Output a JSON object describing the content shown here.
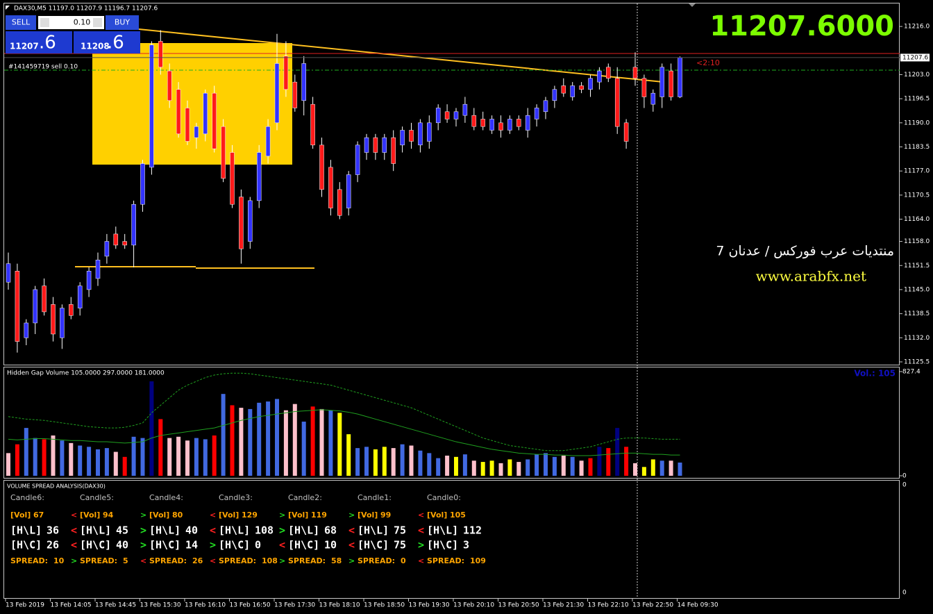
{
  "chart_data": [
    {
      "type": "candlestick",
      "categories": [
        "13 Feb 2019",
        null,
        null,
        null,
        null,
        "13 Feb 14:05",
        null,
        null,
        null,
        null,
        "13 Feb 14:45",
        null,
        null,
        null,
        null,
        "13 Feb 15:30",
        null,
        null,
        null,
        null,
        "13 Feb 16:10",
        null,
        null,
        null,
        null,
        "13 Feb 16:50",
        null,
        null,
        null,
        null,
        "13 Feb 17:30",
        null,
        null,
        null,
        null,
        "13 Feb 18:10",
        null,
        null,
        null,
        null,
        "13 Feb 18:50",
        null,
        null,
        null,
        null,
        "13 Feb 19:30",
        null,
        null,
        null,
        null,
        "13 Feb 20:10",
        null,
        null,
        null,
        null,
        "13 Feb 20:50",
        null,
        null,
        null,
        null,
        "13 Feb 21:30",
        null,
        null,
        null,
        null,
        "13 Feb 22:10",
        null,
        null,
        null,
        null,
        "13 Feb 22:50",
        null,
        null,
        null,
        null,
        "14 Feb 09:30"
      ],
      "open": [
        11147,
        11150,
        11132,
        11136,
        11146,
        11141,
        11132,
        11141,
        11140,
        11145,
        11148,
        11154,
        11160,
        11158,
        11157,
        11168,
        11178,
        11212,
        11204,
        11199,
        11194,
        11186,
        11187,
        11198,
        11189,
        11182,
        11170,
        11158,
        11169,
        11181,
        11190,
        11208,
        11201,
        11196,
        11195,
        11184,
        11178,
        11172,
        11167,
        11176,
        11182,
        11186,
        11182,
        11186,
        11184,
        11188,
        11184,
        11185,
        11190,
        11193,
        11191,
        11192,
        11192,
        11191,
        11188,
        11190,
        11188,
        11191,
        11188,
        11191,
        11193,
        11196,
        11200,
        11197,
        11200,
        11199,
        11201,
        11205,
        11202,
        11190,
        11205,
        11202,
        11195,
        11197,
        11204,
        11197
      ],
      "high": [
        11155,
        11152,
        11137,
        11146,
        11148,
        11143,
        11141,
        11143,
        11147,
        11151,
        11155,
        11160,
        11162,
        11160,
        11169,
        11180,
        11212,
        11215,
        11206,
        11201,
        11196,
        11190,
        11199,
        11200,
        11191,
        11184,
        11172,
        11170,
        11184,
        11191,
        11214,
        11212,
        11203,
        11208,
        11197,
        11186,
        11180,
        11174,
        11177,
        11185,
        11187,
        11187,
        11187,
        11188,
        11189,
        11190,
        11191,
        11192,
        11195,
        11195,
        11194,
        11197,
        11194,
        11193,
        11192,
        11192,
        11192,
        11192,
        11194,
        11195,
        11197,
        11200,
        11202,
        11201,
        11201,
        11203,
        11205,
        11206,
        11205,
        11191,
        11209,
        11203,
        11199,
        11206,
        11206,
        11207.9
      ],
      "low": [
        11145,
        11128,
        11130,
        11133,
        11138,
        11131,
        11129,
        11137,
        11138,
        11143,
        11146,
        11152,
        11156,
        11156,
        11151,
        11166,
        11176,
        11203,
        11194,
        11186,
        11184,
        11183,
        11185,
        11182,
        11174,
        11167,
        11152,
        11156,
        11167,
        11179,
        11188,
        11197,
        11193,
        11192,
        11183,
        11170,
        11165,
        11164,
        11165,
        11174,
        11180,
        11180,
        11180,
        11177,
        11182,
        11183,
        11182,
        11183,
        11188,
        11190,
        11189,
        11190,
        11188,
        11188,
        11187,
        11186,
        11187,
        11188,
        11186,
        11189,
        11191,
        11194,
        11197,
        11196,
        11198,
        11197,
        11199,
        11201,
        11187,
        11183,
        11200,
        11194,
        11193,
        11194,
        11196,
        11196.7
      ],
      "close": [
        11152,
        11131,
        11136,
        11145,
        11139,
        11133,
        11140,
        11138,
        11146,
        11150,
        11153,
        11158,
        11157,
        11157,
        11168,
        11179,
        11211,
        11205,
        11196,
        11187,
        11185,
        11189,
        11198,
        11183,
        11175,
        11168,
        11156,
        11169,
        11182,
        11189,
        11206,
        11199,
        11194,
        11206,
        11184,
        11172,
        11167,
        11165,
        11176,
        11184,
        11186,
        11182,
        11186,
        11179,
        11188,
        11185,
        11190,
        11190,
        11194,
        11191,
        11193,
        11195,
        11189,
        11189,
        11191,
        11188,
        11191,
        11189,
        11192,
        11194,
        11196,
        11199,
        11198,
        11200,
        11199,
        11202,
        11204,
        11202,
        11189,
        11185,
        11202,
        11197,
        11198,
        11205,
        11197,
        11207.6
      ],
      "up_color": "#3333ff",
      "down_color": "#ff1a1a",
      "wick_color": "#ffffff",
      "ylim": [
        11124.75,
        11222.2
      ],
      "yticks": [
        {
          "value": 11216.0,
          "label": "11216.0"
        },
        {
          "value": 11203.0,
          "label": "11203.0"
        },
        {
          "value": 11196.5,
          "label": "11196.5"
        },
        {
          "value": 11190.0,
          "label": "11190.0"
        },
        {
          "value": 11183.5,
          "label": "11183.5"
        },
        {
          "value": 11177.0,
          "label": "11177.0"
        },
        {
          "value": 11170.5,
          "label": "11170.5"
        },
        {
          "value": 11164.0,
          "label": "11164.0"
        },
        {
          "value": 11158.0,
          "label": "11158.0"
        },
        {
          "value": 11151.5,
          "label": "11151.5"
        },
        {
          "value": 11145.0,
          "label": "11145.0"
        },
        {
          "value": 11138.5,
          "label": "11138.5"
        },
        {
          "value": 11132.0,
          "label": "11132.0"
        },
        {
          "value": 11125.5,
          "label": "11125.5"
        }
      ],
      "last_price": {
        "value": 11207.6,
        "label": "11207.6"
      }
    },
    {
      "type": "bar",
      "title": "Hidden Gap Volume 105.0000 297.0000 181.0000",
      "values": [
        180,
        250,
        380,
        300,
        290,
        320,
        280,
        260,
        240,
        230,
        210,
        220,
        190,
        150,
        310,
        300,
        750,
        450,
        300,
        310,
        280,
        300,
        290,
        320,
        650,
        560,
        540,
        530,
        580,
        590,
        610,
        520,
        570,
        430,
        550,
        530,
        520,
        500,
        330,
        220,
        230,
        210,
        230,
        220,
        250,
        240,
        200,
        180,
        140,
        160,
        150,
        170,
        120,
        110,
        120,
        100,
        130,
        110,
        130,
        170,
        180,
        150,
        160,
        150,
        120,
        140,
        230,
        220,
        380,
        230,
        100,
        70,
        130,
        120,
        120,
        105
      ],
      "colors": [
        "#ffc0cb",
        "#ff0000",
        "#4169e1",
        "#4169e1",
        "#ff0000",
        "#ffc0cb",
        "#4169e1",
        "#ffc0cb",
        "#4169e1",
        "#4169e1",
        "#4169e1",
        "#4169e1",
        "#ffc0cb",
        "#ff0000",
        "#4169e1",
        "#4169e1",
        "#000080",
        "#ff0000",
        "#ffc0cb",
        "#ffc0cb",
        "#ffc0cb",
        "#4169e1",
        "#4169e1",
        "#ff0000",
        "#4169e1",
        "#ff0000",
        "#ffc0cb",
        "#4169e1",
        "#4169e1",
        "#4169e1",
        "#4169e1",
        "#ffc0cb",
        "#ffc0cb",
        "#4169e1",
        "#ff0000",
        "#ffc0cb",
        "#4169e1",
        "#ffff00",
        "#ffff00",
        "#4169e1",
        "#4169e1",
        "#ffff00",
        "#ffff00",
        "#ffc0cb",
        "#4169e1",
        "#ffc0cb",
        "#4169e1",
        "#4169e1",
        "#4169e1",
        "#ffc0cb",
        "#ffff00",
        "#4169e1",
        "#ffc0cb",
        "#ffff00",
        "#ffff00",
        "#ffc0cb",
        "#ffff00",
        "#ffc0cb",
        "#4169e1",
        "#4169e1",
        "#4169e1",
        "#4169e1",
        "#ffc0cb",
        "#4169e1",
        "#ffc0cb",
        "#ff0000",
        "#000080",
        "#ff0000",
        "#000080",
        "#ff0000",
        "#ffc0cb",
        "#ffff00",
        "#ffff00",
        "#4169e1",
        "#ffc0cb",
        "#4169e1"
      ],
      "lines": [
        {
          "color": "#1fa01f",
          "dash": false,
          "values": [
            290,
            285,
            290,
            295,
            295,
            290,
            285,
            280,
            280,
            275,
            270,
            270,
            265,
            260,
            265,
            270,
            300,
            320,
            330,
            340,
            350,
            360,
            370,
            380,
            400,
            420,
            440,
            455,
            470,
            480,
            490,
            500,
            510,
            515,
            520,
            525,
            520,
            515,
            505,
            490,
            470,
            450,
            430,
            410,
            390,
            370,
            350,
            330,
            310,
            290,
            270,
            255,
            240,
            225,
            210,
            200,
            190,
            180,
            175,
            170,
            170,
            165,
            165,
            160,
            160,
            160,
            165,
            170,
            175,
            180,
            180,
            175,
            170,
            170,
            165,
            165
          ]
        },
        {
          "color": "#1fa01f",
          "dash": true,
          "values": [
            470,
            460,
            450,
            445,
            440,
            430,
            420,
            410,
            400,
            390,
            385,
            380,
            380,
            385,
            400,
            420,
            500,
            560,
            620,
            680,
            720,
            750,
            780,
            800,
            810,
            815,
            815,
            810,
            800,
            790,
            780,
            770,
            760,
            750,
            740,
            730,
            720,
            700,
            680,
            660,
            640,
            620,
            600,
            580,
            560,
            540,
            510,
            480,
            450,
            420,
            390,
            360,
            330,
            300,
            280,
            260,
            240,
            230,
            220,
            210,
            200,
            200,
            200,
            210,
            220,
            230,
            250,
            270,
            290,
            300,
            300,
            300,
            295,
            290,
            290,
            290
          ]
        }
      ],
      "value_label": "Vol.: 105",
      "ylim": [
        0,
        827.4
      ],
      "yticks": [
        0,
        827.4
      ]
    }
  ],
  "header": "DAX30,M5  11197.0 11207.9 11196.7 11207.6",
  "trade_panel": {
    "sell": "SELL",
    "buy": "BUY",
    "lot": "0.10",
    "bid_main": "11207",
    "bid_frac": ".6",
    "ask_main": "11208",
    "ask_frac": ".6"
  },
  "order_label": "#141459719 sell 0.10",
  "timer": "<2:10",
  "big_price": "11207.6000",
  "watermark": {
    "line1": "منتديات عرب فوركس / عدنان 7",
    "line2": "www.arabfx.net"
  },
  "vsa": {
    "title": "VOLUME SPREAD ANALYSIS(DAX30)",
    "row_labels": [
      "[Vol]",
      "[H\\L]",
      "[H\\C]",
      "SPREAD:"
    ],
    "arrow_colors": {
      "<": "#ff2020",
      ">": "#22dd22"
    },
    "columns": [
      {
        "name": "Candle6:",
        "arrows": [
          null,
          null,
          null,
          null
        ],
        "values": [
          67,
          36,
          26,
          10
        ]
      },
      {
        "name": "Candle5:",
        "arrows": [
          "<",
          "<",
          "<",
          ">"
        ],
        "values": [
          94,
          45,
          40,
          5
        ]
      },
      {
        "name": "Candle4:",
        "arrows": [
          ">",
          ">",
          ">",
          "<"
        ],
        "values": [
          80,
          40,
          14,
          26
        ]
      },
      {
        "name": "Candle3:",
        "arrows": [
          "<",
          "<",
          ">",
          "<"
        ],
        "values": [
          129,
          108,
          0,
          108
        ]
      },
      {
        "name": "Candle2:",
        "arrows": [
          ">",
          ">",
          "<",
          ">"
        ],
        "values": [
          119,
          68,
          10,
          58
        ]
      },
      {
        "name": "Candle1:",
        "arrows": [
          ">",
          "<",
          "<",
          ">"
        ],
        "values": [
          99,
          75,
          75,
          0
        ]
      },
      {
        "name": "Candle0:",
        "arrows": [
          "<",
          "<",
          ">",
          "<"
        ],
        "values": [
          105,
          112,
          3,
          109
        ]
      }
    ],
    "ticks": [
      0,
      0
    ]
  }
}
